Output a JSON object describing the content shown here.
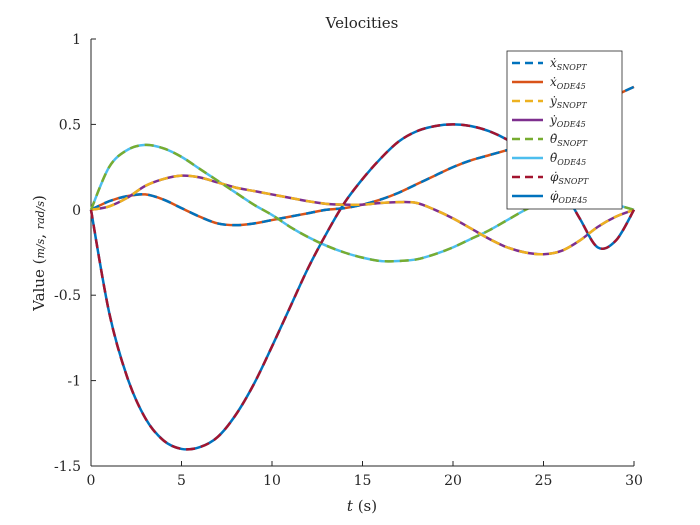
{
  "chart_data": {
    "type": "line",
    "title": "Velocities",
    "xlabel": "t (s)",
    "ylabel": "Value (m/s, rad/s)",
    "xlim": [
      0,
      30
    ],
    "ylim": [
      -1.5,
      1
    ],
    "x_ticks": [
      "0",
      "5",
      "10",
      "15",
      "20",
      "25",
      "30"
    ],
    "y_ticks": [
      "1",
      "0.5",
      "0",
      "-0.5",
      "-1",
      "-1.5"
    ],
    "grid": false,
    "legend_position": "top-right",
    "series": [
      {
        "name": "ẋ_SNOPT",
        "label": "ẋ",
        "sub": "SNOPT",
        "style": "dashed",
        "color": "#0072BD",
        "x": [
          0,
          1,
          2,
          3,
          4,
          5,
          6,
          7,
          8,
          9,
          10,
          11,
          12,
          13,
          14,
          15,
          16,
          17,
          18,
          19,
          20,
          21,
          22,
          23,
          24,
          25,
          26,
          27,
          28,
          29,
          30
        ],
        "y": [
          0,
          0.05,
          0.08,
          0.09,
          0.06,
          0.01,
          -0.04,
          -0.08,
          -0.09,
          -0.08,
          -0.06,
          -0.04,
          -0.02,
          0.0,
          0.01,
          0.03,
          0.06,
          0.1,
          0.15,
          0.2,
          0.25,
          0.29,
          0.32,
          0.35,
          0.38,
          0.42,
          0.49,
          0.55,
          0.61,
          0.67,
          0.72
        ]
      },
      {
        "name": "ẋ_ODE45",
        "label": "ẋ",
        "sub": "ODE45",
        "style": "solid",
        "color": "#D95319",
        "x": [
          0,
          1,
          2,
          3,
          4,
          5,
          6,
          7,
          8,
          9,
          10,
          11,
          12,
          13,
          14,
          15,
          16,
          17,
          18,
          19,
          20,
          21,
          22,
          23,
          24,
          25,
          26,
          27,
          28,
          29,
          30
        ],
        "y": [
          0,
          0.05,
          0.08,
          0.09,
          0.06,
          0.01,
          -0.04,
          -0.08,
          -0.09,
          -0.08,
          -0.06,
          -0.04,
          -0.02,
          0.0,
          0.01,
          0.03,
          0.06,
          0.1,
          0.15,
          0.2,
          0.25,
          0.29,
          0.32,
          0.35,
          0.38,
          0.42,
          0.49,
          0.55,
          0.61,
          0.67,
          0.72
        ]
      },
      {
        "name": "ẏ_SNOPT",
        "label": "ẏ",
        "sub": "SNOPT",
        "style": "dashed",
        "color": "#EDB120",
        "x": [
          0,
          1,
          2,
          3,
          4,
          5,
          6,
          7,
          8,
          9,
          10,
          11,
          12,
          13,
          14,
          15,
          16,
          17,
          18,
          19,
          20,
          21,
          22,
          23,
          24,
          25,
          26,
          27,
          28,
          29,
          30
        ],
        "y": [
          0,
          0.02,
          0.07,
          0.14,
          0.18,
          0.2,
          0.19,
          0.16,
          0.13,
          0.11,
          0.09,
          0.07,
          0.05,
          0.035,
          0.03,
          0.03,
          0.04,
          0.045,
          0.04,
          0.0,
          -0.05,
          -0.11,
          -0.17,
          -0.22,
          -0.25,
          -0.26,
          -0.24,
          -0.18,
          -0.1,
          -0.04,
          0
        ]
      },
      {
        "name": "ẏ_ODE45",
        "label": "ẏ",
        "sub": "ODE45",
        "style": "solid",
        "color": "#7E2F8E",
        "x": [
          0,
          1,
          2,
          3,
          4,
          5,
          6,
          7,
          8,
          9,
          10,
          11,
          12,
          13,
          14,
          15,
          16,
          17,
          18,
          19,
          20,
          21,
          22,
          23,
          24,
          25,
          26,
          27,
          28,
          29,
          30
        ],
        "y": [
          0,
          0.02,
          0.07,
          0.14,
          0.18,
          0.2,
          0.19,
          0.16,
          0.13,
          0.11,
          0.09,
          0.07,
          0.05,
          0.035,
          0.03,
          0.03,
          0.04,
          0.045,
          0.04,
          0.0,
          -0.05,
          -0.11,
          -0.17,
          -0.22,
          -0.25,
          -0.26,
          -0.24,
          -0.18,
          -0.1,
          -0.04,
          0
        ]
      },
      {
        "name": "θ̇_SNOPT",
        "label": "θ̇",
        "sub": "SNOPT",
        "style": "dashed",
        "color": "#77AC30",
        "x": [
          0,
          1,
          2,
          3,
          4,
          5,
          6,
          7,
          8,
          9,
          10,
          11,
          12,
          13,
          14,
          15,
          16,
          17,
          18,
          19,
          20,
          21,
          22,
          23,
          24,
          25,
          26,
          27,
          28,
          29,
          30
        ],
        "y": [
          0,
          0.25,
          0.35,
          0.38,
          0.36,
          0.31,
          0.24,
          0.17,
          0.1,
          0.03,
          -0.03,
          -0.1,
          -0.16,
          -0.21,
          -0.25,
          -0.28,
          -0.3,
          -0.3,
          -0.29,
          -0.26,
          -0.22,
          -0.17,
          -0.12,
          -0.06,
          0.0,
          0.05,
          0.08,
          0.08,
          0.06,
          0.03,
          0
        ]
      },
      {
        "name": "θ̇_ODE45",
        "label": "θ̇",
        "sub": "ODE45",
        "style": "solid",
        "color": "#4DBEEE",
        "x": [
          0,
          1,
          2,
          3,
          4,
          5,
          6,
          7,
          8,
          9,
          10,
          11,
          12,
          13,
          14,
          15,
          16,
          17,
          18,
          19,
          20,
          21,
          22,
          23,
          24,
          25,
          26,
          27,
          28,
          29,
          30
        ],
        "y": [
          0,
          0.25,
          0.35,
          0.38,
          0.36,
          0.31,
          0.24,
          0.17,
          0.1,
          0.03,
          -0.03,
          -0.1,
          -0.16,
          -0.21,
          -0.25,
          -0.28,
          -0.3,
          -0.3,
          -0.29,
          -0.26,
          -0.22,
          -0.17,
          -0.12,
          -0.06,
          0.0,
          0.05,
          0.08,
          0.08,
          0.06,
          0.03,
          0
        ]
      },
      {
        "name": "φ̇_SNOPT",
        "label": "φ̇",
        "sub": "SNOPT",
        "style": "dashed",
        "color": "#A2142F",
        "x": [
          0,
          1,
          2,
          3,
          4,
          5,
          6,
          7,
          8,
          9,
          10,
          11,
          12,
          13,
          14,
          15,
          16,
          17,
          18,
          19,
          20,
          21,
          22,
          23,
          24,
          25,
          26,
          27,
          28,
          29,
          30
        ],
        "y": [
          0,
          -0.6,
          -0.98,
          -1.22,
          -1.35,
          -1.4,
          -1.39,
          -1.33,
          -1.2,
          -1.02,
          -0.8,
          -0.57,
          -0.34,
          -0.14,
          0.04,
          0.18,
          0.3,
          0.4,
          0.46,
          0.49,
          0.5,
          0.49,
          0.46,
          0.41,
          0.34,
          0.25,
          0.13,
          -0.05,
          -0.22,
          -0.18,
          0
        ]
      },
      {
        "name": "φ̇_ODE45",
        "label": "φ̇",
        "sub": "ODE45",
        "style": "solid",
        "color": "#0072BD",
        "x": [
          0,
          1,
          2,
          3,
          4,
          5,
          6,
          7,
          8,
          9,
          10,
          11,
          12,
          13,
          14,
          15,
          16,
          17,
          18,
          19,
          20,
          21,
          22,
          23,
          24,
          25,
          26,
          27,
          28,
          29,
          30
        ],
        "y": [
          0,
          -0.6,
          -0.98,
          -1.22,
          -1.35,
          -1.4,
          -1.39,
          -1.33,
          -1.2,
          -1.02,
          -0.8,
          -0.57,
          -0.34,
          -0.14,
          0.04,
          0.18,
          0.3,
          0.4,
          0.46,
          0.49,
          0.5,
          0.49,
          0.46,
          0.41,
          0.34,
          0.25,
          0.13,
          -0.05,
          -0.22,
          -0.18,
          0
        ]
      }
    ]
  }
}
